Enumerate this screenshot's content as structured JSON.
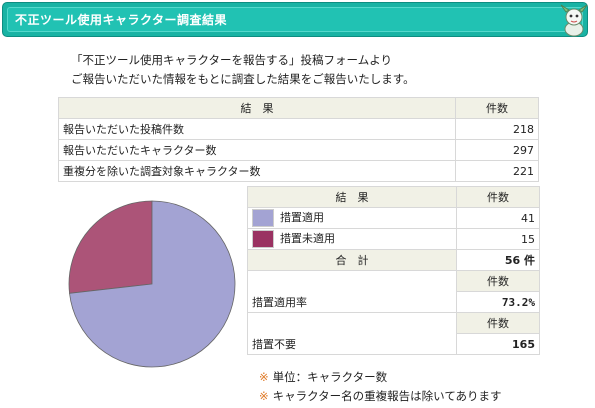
{
  "header": {
    "title": "不正ツール使用キャラクター調査結果"
  },
  "intro": {
    "line1": "「不正ツール使用キャラクターを報告する」投稿フォームより",
    "line2": "ご報告いただいた情報をもとに調査した結果をご報告いたします。"
  },
  "summary_table": {
    "col_result": "結　果",
    "col_count": "件数",
    "rows": [
      {
        "label": "報告いただいた投稿件数",
        "value": "218"
      },
      {
        "label": "報告いただいたキャラクター数",
        "value": "297"
      },
      {
        "label": "重複分を除いた調査対象キャラクター数",
        "value": "221"
      }
    ]
  },
  "result_table": {
    "col_result": "結　果",
    "col_count": "件数",
    "rows": [
      {
        "label": "措置適用",
        "value": "41",
        "color": "#a3a3d3"
      },
      {
        "label": "措置未適用",
        "value": "15",
        "color": "#9a3262"
      }
    ],
    "total_label": "合　計",
    "total_value": "56 件",
    "rate_count_header": "件数",
    "rate_label": "措置適用率",
    "rate_value": "73.2%",
    "unneeded_count_header": "件数",
    "unneeded_label": "措置不要",
    "unneeded_value": "165"
  },
  "notes": {
    "mark": "※",
    "line1": "単位：キャラクター数",
    "line2": "キャラクター名の重複報告は除いてあります"
  },
  "chart_data": {
    "type": "pie",
    "categories": [
      "措置適用",
      "措置未適用"
    ],
    "values": [
      41,
      15
    ],
    "colors": [
      "#a3a3d3",
      "#ac5478"
    ],
    "title": ""
  }
}
